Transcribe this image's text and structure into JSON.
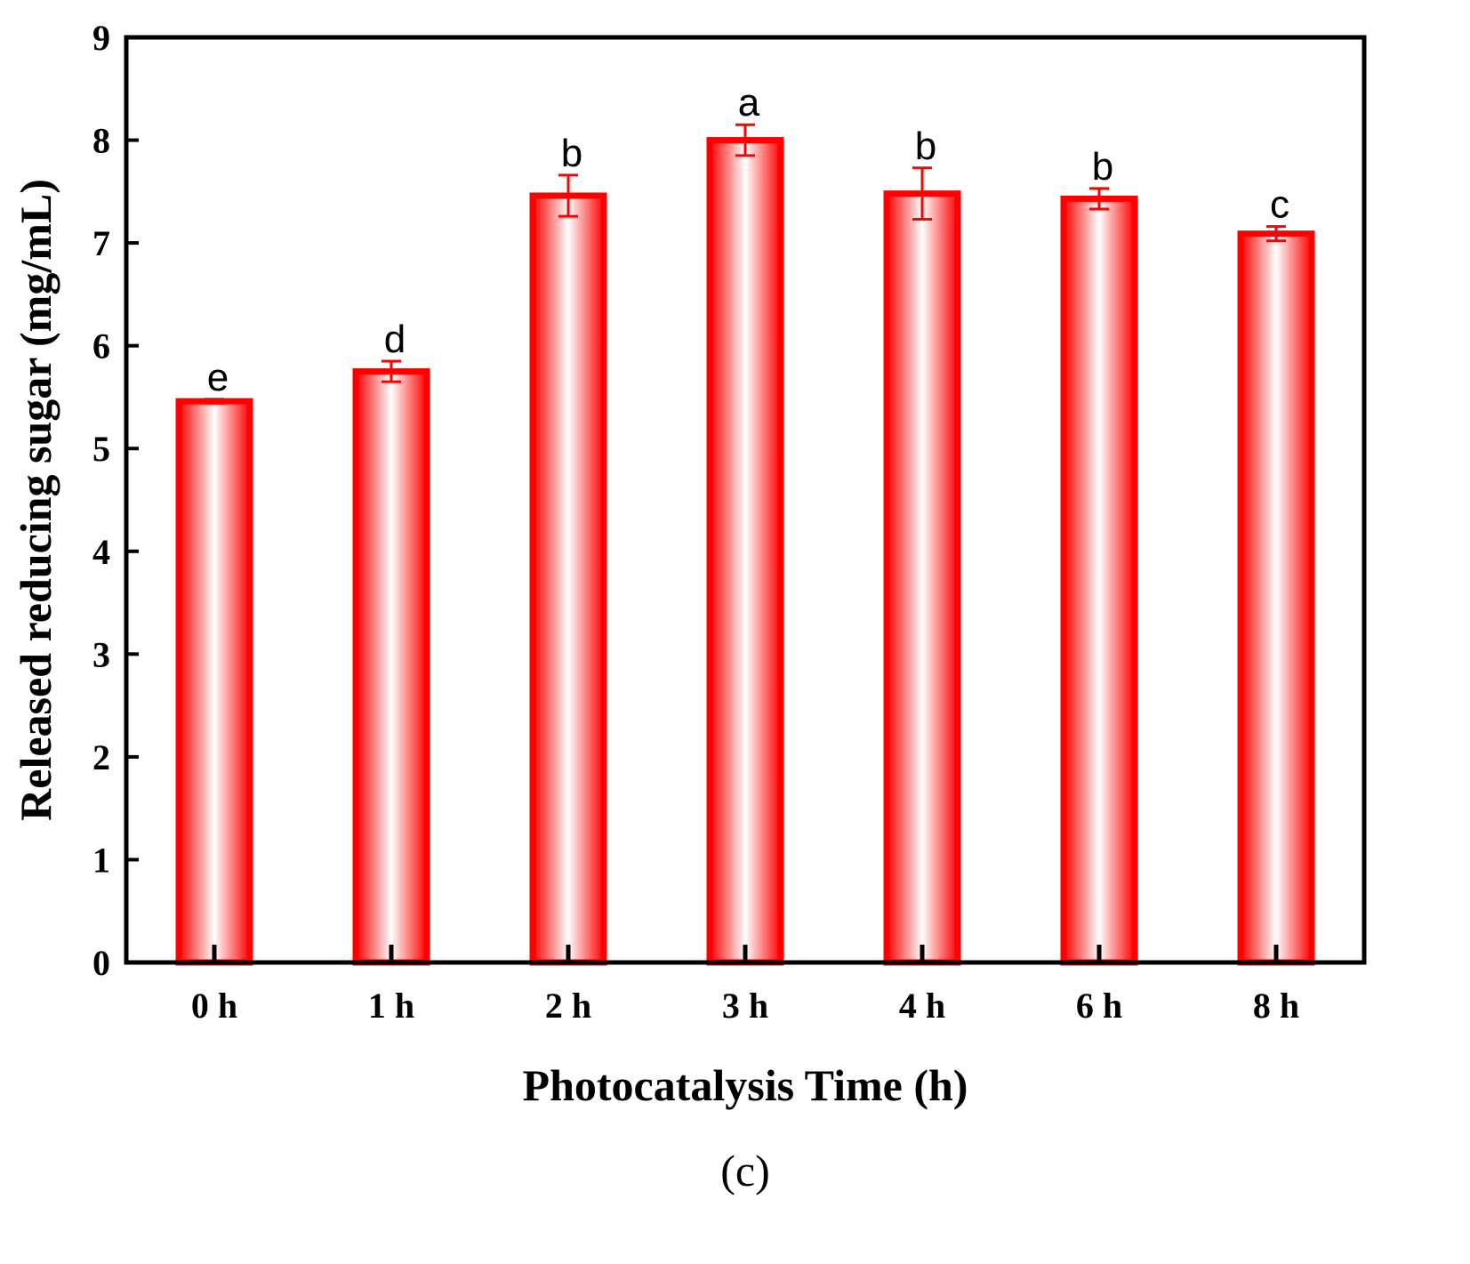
{
  "chart_data": {
    "type": "bar",
    "categories": [
      "0 h",
      "1 h",
      "2 h",
      "3 h",
      "4 h",
      "6 h",
      "8 h"
    ],
    "series": [
      {
        "values": [
          5.46,
          5.75,
          7.46,
          8.0,
          7.48,
          7.43,
          7.09
        ],
        "errors": [
          0.02,
          0.1,
          0.2,
          0.15,
          0.25,
          0.1,
          0.07
        ],
        "significance": [
          "e",
          "d",
          "b",
          "a",
          "b",
          "b",
          "c"
        ]
      }
    ],
    "xlabel": "Photocatalysis Time (h)",
    "ylabel": "Released reducing sugar (mg/mL)",
    "ylim": [
      0,
      9
    ],
    "yticks": [
      "0",
      "1",
      "2",
      "3",
      "4",
      "5",
      "6",
      "7",
      "8",
      "9"
    ],
    "grid": false,
    "caption": "(c)",
    "colors": {
      "bar": "#ff0000",
      "bar_fill_center": "#ffffff",
      "axis": "#000000"
    }
  }
}
